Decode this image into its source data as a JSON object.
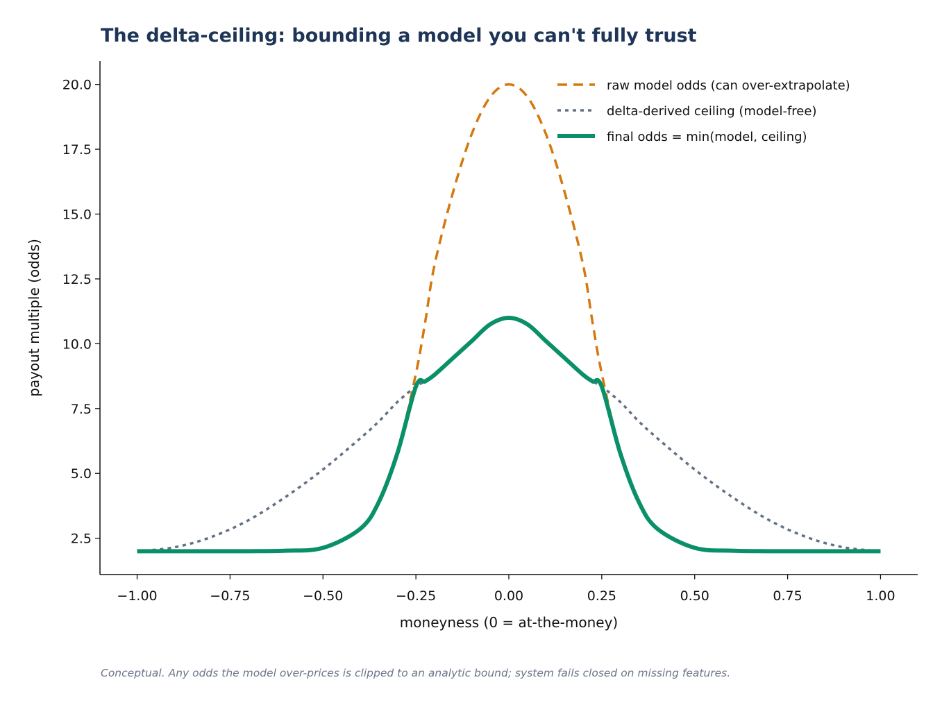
{
  "chart_data": {
    "type": "line",
    "title": "The delta-ceiling: bounding a model you can't fully trust",
    "xlabel": "moneyness  (0 = at-the-money)",
    "ylabel": "payout multiple (odds)",
    "xlim": [
      -1.1,
      1.1
    ],
    "ylim": [
      1.1,
      20.9
    ],
    "xticks": [
      -1.0,
      -0.75,
      -0.5,
      -0.25,
      0.0,
      0.25,
      0.5,
      0.75,
      1.0
    ],
    "xtick_labels": [
      "−1.00",
      "−0.75",
      "−0.50",
      "−0.25",
      "0.00",
      "0.25",
      "0.50",
      "0.75",
      "1.00"
    ],
    "yticks": [
      2.5,
      5.0,
      7.5,
      10.0,
      12.5,
      15.0,
      17.5,
      20.0
    ],
    "ytick_labels": [
      "2.5",
      "5.0",
      "7.5",
      "10.0",
      "12.5",
      "15.0",
      "17.5",
      "20.0"
    ],
    "grid": false,
    "legend_position": "top-right",
    "caption": "Conceptual. Any odds the model over-prices is clipped to an analytic bound; system fails closed on missing features.",
    "x": [
      -1.0,
      -0.9,
      -0.8,
      -0.7,
      -0.6,
      -0.5,
      -0.4,
      -0.35,
      -0.3,
      -0.25,
      -0.225,
      -0.2,
      -0.15,
      -0.1,
      -0.05,
      0.0,
      0.05,
      0.1,
      0.15,
      0.2,
      0.225,
      0.25,
      0.3,
      0.35,
      0.4,
      0.5,
      0.6,
      0.7,
      0.8,
      0.9,
      1.0
    ],
    "series": [
      {
        "name": "raw model odds (can over-extrapolate)",
        "color": "#d4780f",
        "style": "dashed",
        "values": [
          2.0,
          2.0,
          2.0,
          2.0,
          2.02,
          2.13,
          2.86,
          3.89,
          5.77,
          8.85,
          10.84,
          13.03,
          15.85,
          18.08,
          19.52,
          20.0,
          19.52,
          18.08,
          15.85,
          13.03,
          10.84,
          8.85,
          5.77,
          3.89,
          2.86,
          2.13,
          2.02,
          2.0,
          2.0,
          2.0,
          2.0
        ]
      },
      {
        "name": "delta-derived ceiling (model-free)",
        "color": "#637085",
        "style": "dotted",
        "values": [
          2.0,
          2.15,
          2.55,
          3.2,
          4.1,
          5.15,
          6.35,
          7.0,
          7.75,
          8.35,
          8.55,
          8.8,
          9.45,
          10.1,
          10.75,
          11.0,
          10.75,
          10.1,
          9.45,
          8.8,
          8.55,
          8.35,
          7.75,
          7.0,
          6.35,
          5.15,
          4.1,
          3.2,
          2.55,
          2.15,
          2.0
        ]
      },
      {
        "name": "final odds = min(model, ceiling)",
        "color": "#0a9068",
        "style": "solid",
        "values": [
          2.0,
          2.0,
          2.0,
          2.0,
          2.02,
          2.13,
          2.86,
          3.89,
          5.77,
          8.35,
          8.55,
          8.8,
          9.45,
          10.1,
          10.75,
          11.0,
          10.75,
          10.1,
          9.45,
          8.8,
          8.55,
          8.35,
          5.77,
          3.89,
          2.86,
          2.13,
          2.02,
          2.0,
          2.0,
          2.0,
          2.0
        ]
      }
    ]
  }
}
